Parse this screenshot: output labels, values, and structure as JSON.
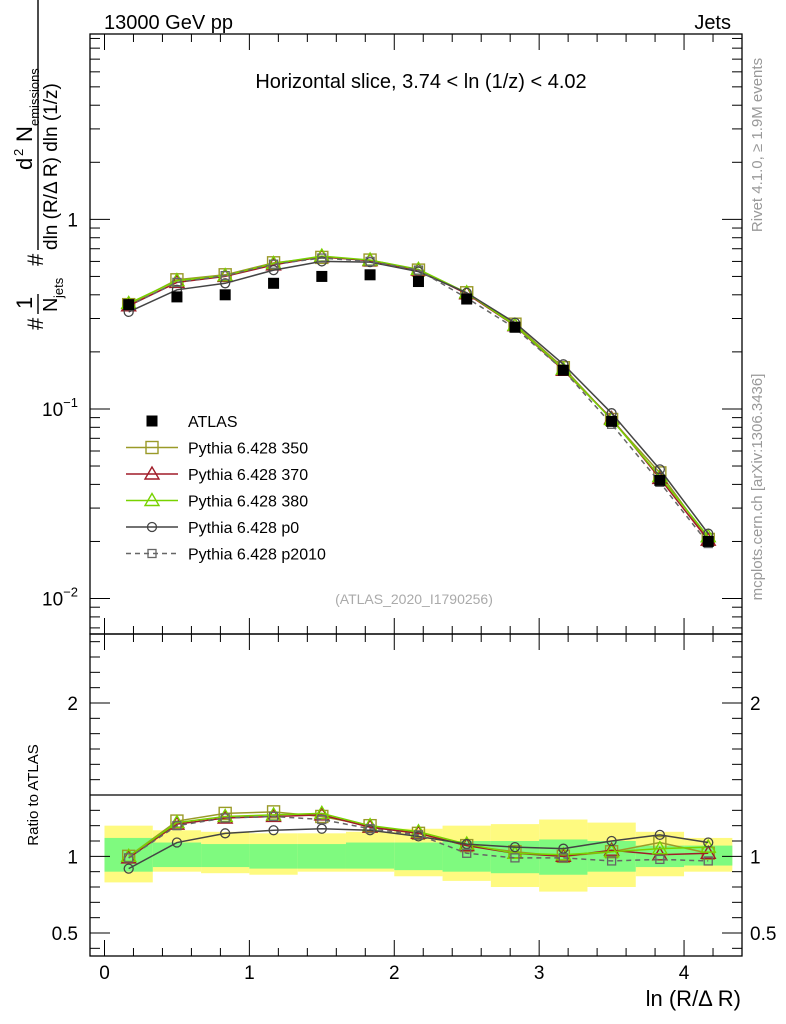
{
  "header": {
    "left": "13000 GeV pp",
    "right": "Jets"
  },
  "side_text": {
    "rivet": "Rivet 4.1.0, ≥ 1.9M events",
    "site": "mcplots.cern.ch [arXiv:1306.3436]"
  },
  "y_axis_label": {
    "hash": "#",
    "one": "1",
    "n": "N",
    "jets": "jets",
    "d2": "d",
    "two": "2",
    "n_emis": "N",
    "emissions": "emissions",
    "denominator": "dln (R/Δ R) dln (1/z)"
  },
  "ratio_ylabel": "Ratio to ATLAS",
  "xlabel": "ln (R/Δ R)",
  "colors": {
    "ATLAS": "#000000",
    "Pythia 6.428 350": "#9a9a28",
    "Pythia 6.428 370": "#a01c28",
    "Pythia 6.428 380": "#78d200",
    "Pythia 6.428 p0": "#444444",
    "Pythia 6.428 p2010": "#666666",
    "band_inner": "#7ffa7f",
    "band_outer": "#fefa80"
  },
  "chart_data": {
    "type": "line",
    "title": "Horizontal slice, 3.74 < ln (1/z) < 4.02",
    "annotation": "(ATLAS_2020_I1790256)",
    "x_edges": [
      0.0,
      0.3333,
      0.6667,
      1.0,
      1.3333,
      1.6667,
      2.0,
      2.3333,
      2.6667,
      3.0,
      3.3333,
      3.6667,
      4.0,
      4.3333
    ],
    "x": [
      0.167,
      0.5,
      0.833,
      1.167,
      1.5,
      1.833,
      2.167,
      2.5,
      2.833,
      3.167,
      3.5,
      3.833,
      4.167
    ],
    "xlim": [
      -0.1,
      4.4
    ],
    "ylim": [
      0.0065,
      9.5
    ],
    "yscale": "log",
    "y_ticks": [
      {
        "value": 0.01,
        "base": "10",
        "exp": "−2"
      },
      {
        "value": 0.1,
        "base": "10",
        "exp": "−1"
      },
      {
        "value": 1,
        "base": "1",
        "exp": ""
      }
    ],
    "x_ticks": [
      "0",
      "1",
      "2",
      "3",
      "4"
    ],
    "x_tick_values": [
      0,
      1,
      2,
      3,
      4
    ],
    "ratio_ylim": [
      0.35,
      2.45
    ],
    "ratio_ticks": [
      {
        "value": 0.5,
        "label": "0.5"
      },
      {
        "value": 1,
        "label": "1"
      },
      {
        "value": 2,
        "label": "2"
      }
    ],
    "legend_position": "center-left",
    "data": {
      "name": "ATLAS",
      "values": [
        0.355,
        0.39,
        0.4,
        0.46,
        0.5,
        0.51,
        0.47,
        0.38,
        0.27,
        0.16,
        0.086,
        0.042,
        0.02
      ]
    },
    "band_inner": [
      [
        0.9,
        1.12
      ],
      [
        0.93,
        1.09
      ],
      [
        0.93,
        1.08
      ],
      [
        0.92,
        1.08
      ],
      [
        0.92,
        1.08
      ],
      [
        0.92,
        1.09
      ],
      [
        0.91,
        1.09
      ],
      [
        0.9,
        1.1
      ],
      [
        0.89,
        1.1
      ],
      [
        0.88,
        1.11
      ],
      [
        0.9,
        1.1
      ],
      [
        0.93,
        1.07
      ],
      [
        0.94,
        1.07
      ]
    ],
    "band_outer": [
      [
        0.83,
        1.2
      ],
      [
        0.9,
        1.17
      ],
      [
        0.89,
        1.16
      ],
      [
        0.88,
        1.15
      ],
      [
        0.9,
        1.15
      ],
      [
        0.9,
        1.16
      ],
      [
        0.87,
        1.18
      ],
      [
        0.84,
        1.2
      ],
      [
        0.8,
        1.21
      ],
      [
        0.77,
        1.24
      ],
      [
        0.8,
        1.22
      ],
      [
        0.87,
        1.16
      ],
      [
        0.9,
        1.12
      ]
    ],
    "series": [
      {
        "name": "Pythia 6.428 350",
        "marker": "square",
        "dashed": false,
        "values": [
          0.355,
          0.48,
          0.51,
          0.59,
          0.63,
          0.61,
          0.54,
          0.41,
          0.28,
          0.165,
          0.088,
          0.046,
          0.0205
        ],
        "ratio": [
          1.0,
          1.23,
          1.28,
          1.29,
          1.26,
          1.2,
          1.15,
          1.07,
          1.03,
          1.0,
          1.03,
          1.09,
          1.02
        ]
      },
      {
        "name": "Pythia 6.428 370",
        "marker": "triangle",
        "dashed": false,
        "values": [
          0.35,
          0.465,
          0.5,
          0.575,
          0.635,
          0.605,
          0.54,
          0.405,
          0.275,
          0.16,
          0.089,
          0.043,
          0.0203
        ],
        "ratio": [
          0.99,
          1.21,
          1.25,
          1.26,
          1.27,
          1.19,
          1.15,
          1.07,
          1.02,
          1.0,
          1.04,
          1.01,
          1.02
        ]
      },
      {
        "name": "Pythia 6.428 380",
        "marker": "triangle",
        "dashed": false,
        "values": [
          0.36,
          0.475,
          0.505,
          0.585,
          0.64,
          0.61,
          0.545,
          0.41,
          0.276,
          0.162,
          0.088,
          0.044,
          0.0212
        ],
        "ratio": [
          1.0,
          1.22,
          1.26,
          1.27,
          1.28,
          1.2,
          1.16,
          1.08,
          1.02,
          1.01,
          1.03,
          1.05,
          1.06
        ]
      },
      {
        "name": "Pythia 6.428 p0",
        "marker": "circle",
        "dashed": false,
        "values": [
          0.325,
          0.425,
          0.46,
          0.54,
          0.6,
          0.595,
          0.53,
          0.41,
          0.285,
          0.172,
          0.095,
          0.048,
          0.022
        ],
        "ratio": [
          0.92,
          1.09,
          1.15,
          1.17,
          1.18,
          1.17,
          1.13,
          1.08,
          1.06,
          1.05,
          1.1,
          1.14,
          1.09
        ]
      },
      {
        "name": "Pythia 6.428 p2010",
        "marker": "square-small",
        "dashed": true,
        "values": [
          0.35,
          0.465,
          0.505,
          0.58,
          0.625,
          0.6,
          0.54,
          0.385,
          0.267,
          0.16,
          0.083,
          0.041,
          0.0195
        ],
        "ratio": [
          0.99,
          1.2,
          1.25,
          1.26,
          1.24,
          1.18,
          1.14,
          1.02,
          0.99,
          0.99,
          0.97,
          0.98,
          0.97
        ]
      }
    ]
  }
}
